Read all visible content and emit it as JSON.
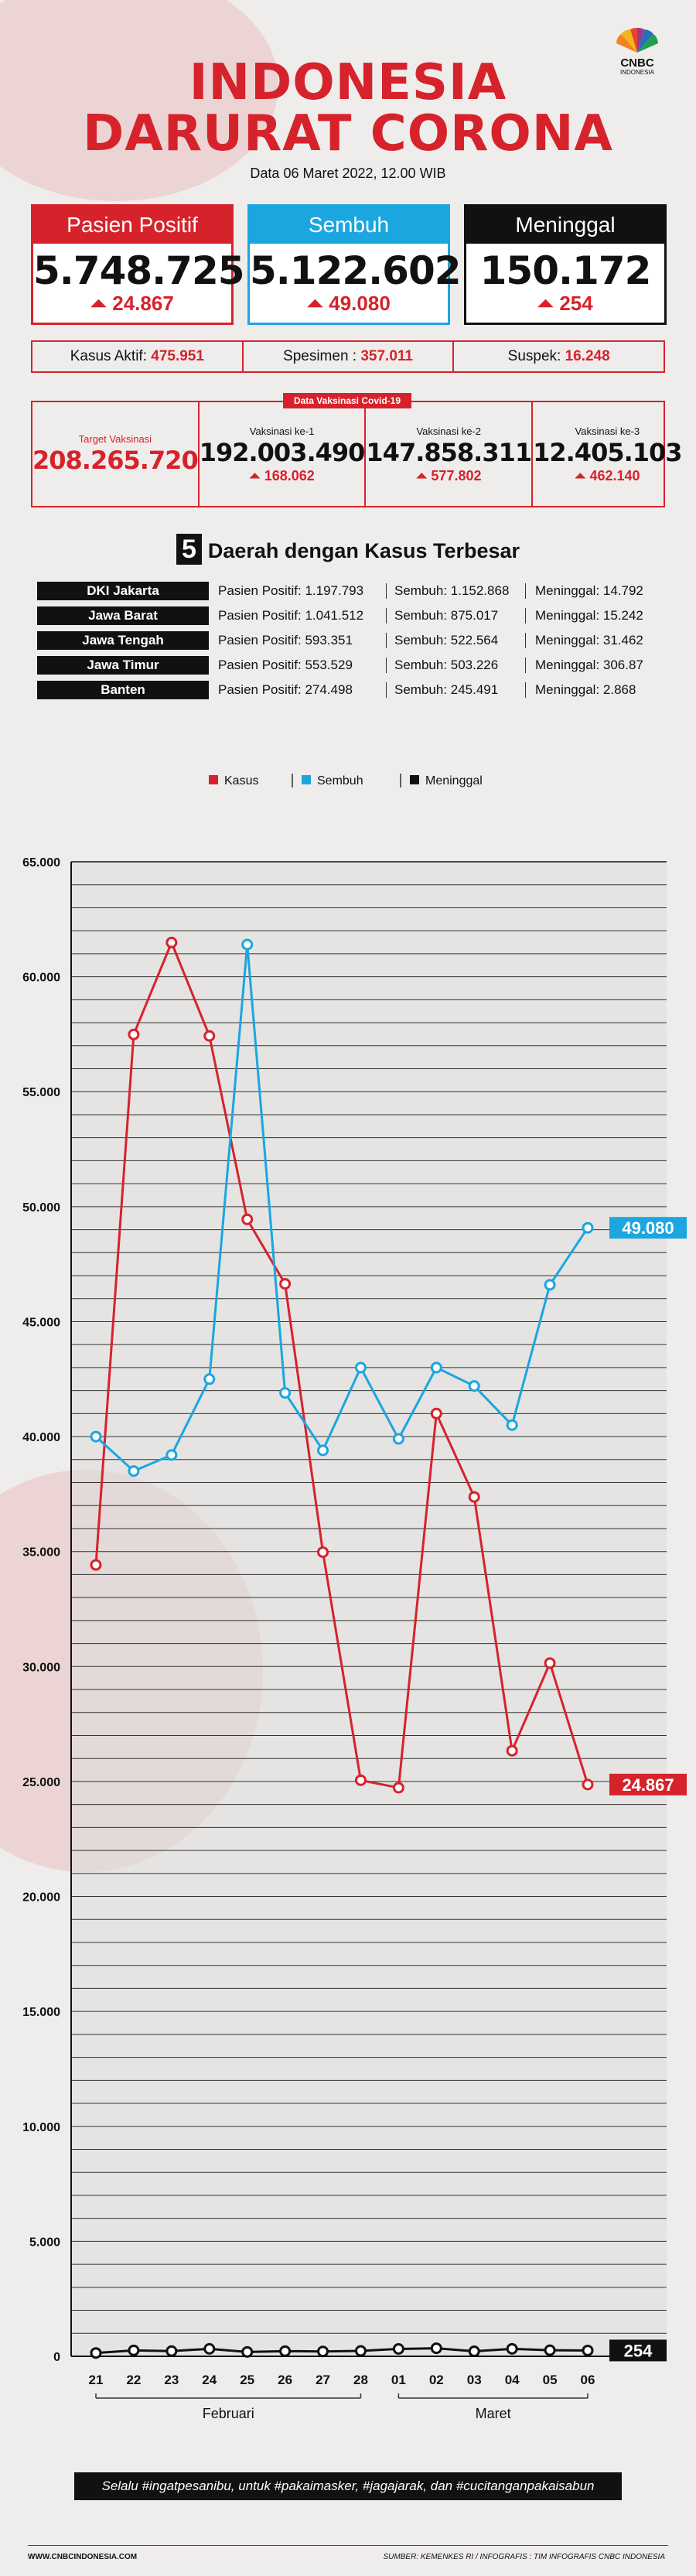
{
  "header": {
    "title_line1": "INDONESIA",
    "title_line2": "DARURAT CORONA",
    "date": "Data 06 Maret 2022, 12.00 WIB",
    "logo_line1": "CNBC",
    "logo_line2": "INDONESIA"
  },
  "cards": {
    "positive": {
      "label": "Pasien Positif",
      "value": "5.748.725",
      "delta": "24.867",
      "color": "#d6232b"
    },
    "recovered": {
      "label": "Sembuh",
      "value": "5.122.602",
      "delta": "49.080",
      "color": "#1ba6e0"
    },
    "deaths": {
      "label": "Meninggal",
      "value": "150.172",
      "delta": "254",
      "color": "#111111"
    }
  },
  "stats": {
    "active_label": "Kasus Aktif:",
    "active_value": "475.951",
    "specimen_label": "Spesimen :",
    "specimen_value": "357.011",
    "suspect_label": "Suspek:",
    "suspect_value": "16.248"
  },
  "vaccination": {
    "tag": "Data Vaksinasi Covid-19",
    "target_label": "Target Vaksinasi",
    "target_value": "208.265.720",
    "dose1_label": "Vaksinasi ke-1",
    "dose1_value": "192.003.490",
    "dose1_delta": "168.062",
    "dose2_label": "Vaksinasi ke-2",
    "dose2_value": "147.858.311",
    "dose2_delta": "577.802",
    "dose3_label": "Vaksinasi ke-3",
    "dose3_value": "12.405.103",
    "dose3_delta": "462.140"
  },
  "top5": {
    "number": "5",
    "title": "Daerah dengan Kasus Terbesar",
    "rows": [
      {
        "region": "DKI Jakarta",
        "positive": "Pasien Positif: 1.197.793",
        "recovered": "Sembuh: 1.152.868",
        "deaths": "Meninggal: 14.792"
      },
      {
        "region": "Jawa Barat",
        "positive": "Pasien Positif: 1.041.512",
        "recovered": "Sembuh: 875.017",
        "deaths": "Meninggal: 15.242"
      },
      {
        "region": "Jawa Tengah",
        "positive": "Pasien Positif: 593.351",
        "recovered": "Sembuh: 522.564",
        "deaths": "Meninggal: 31.462"
      },
      {
        "region": "Jawa Timur",
        "positive": "Pasien Positif: 553.529",
        "recovered": "Sembuh: 503.226",
        "deaths": "Meninggal: 306.87"
      },
      {
        "region": "Banten",
        "positive": "Pasien Positif: 274.498",
        "recovered": "Sembuh: 245.491",
        "deaths": "Meninggal: 2.868"
      }
    ]
  },
  "chart_data": {
    "type": "line",
    "x": [
      "21",
      "22",
      "23",
      "24",
      "25",
      "26",
      "27",
      "28",
      "01",
      "02",
      "03",
      "04",
      "05",
      "06"
    ],
    "month_labels": [
      {
        "label": "Februari",
        "from": 0,
        "to": 7
      },
      {
        "label": "Maret",
        "from": 8,
        "to": 13
      }
    ],
    "ylim": [
      0,
      65000
    ],
    "yticks": [
      0,
      5000,
      10000,
      15000,
      20000,
      25000,
      30000,
      35000,
      40000,
      45000,
      50000,
      55000,
      60000,
      65000
    ],
    "ytick_labels": [
      "0",
      "5.000",
      "10.000",
      "15.000",
      "20.000",
      "25.000",
      "30.000",
      "35.000",
      "40.000",
      "45.000",
      "50.000",
      "55.000",
      "60.000",
      "65.000"
    ],
    "legend_position": "top-center",
    "series": [
      {
        "name": "Kasus",
        "color": "#d6232b",
        "values": [
          34418,
          57491,
          61488,
          57426,
          49447,
          46643,
          34974,
          25054,
          24728,
          41002,
          37376,
          26336,
          30148,
          24867
        ],
        "end_label": "24.867"
      },
      {
        "name": "Sembuh",
        "color": "#1ba6e0",
        "values": [
          40000,
          38500,
          39200,
          42500,
          61400,
          41900,
          39400,
          43000,
          39900,
          43000,
          42200,
          40500,
          46600,
          49080
        ],
        "end_label": "49.080"
      },
      {
        "name": "Meninggal",
        "color": "#111111",
        "values": [
          145,
          257,
          227,
          325,
          191,
          224,
          212,
          235,
          321,
          350,
          217,
          325,
          265,
          254
        ],
        "end_label": "254"
      }
    ]
  },
  "footer": {
    "slogan": "Selalu #ingatpesanibu, untuk #pakaimasker, #jagajarak, dan #cucitanganpakaisabun",
    "site": "WWW.CNBCINDONESIA.COM",
    "source": "SUMBER: KEMENKES RI / INFOGRAFIS : TIM INFOGRAFIS CNBC INDONESIA"
  }
}
